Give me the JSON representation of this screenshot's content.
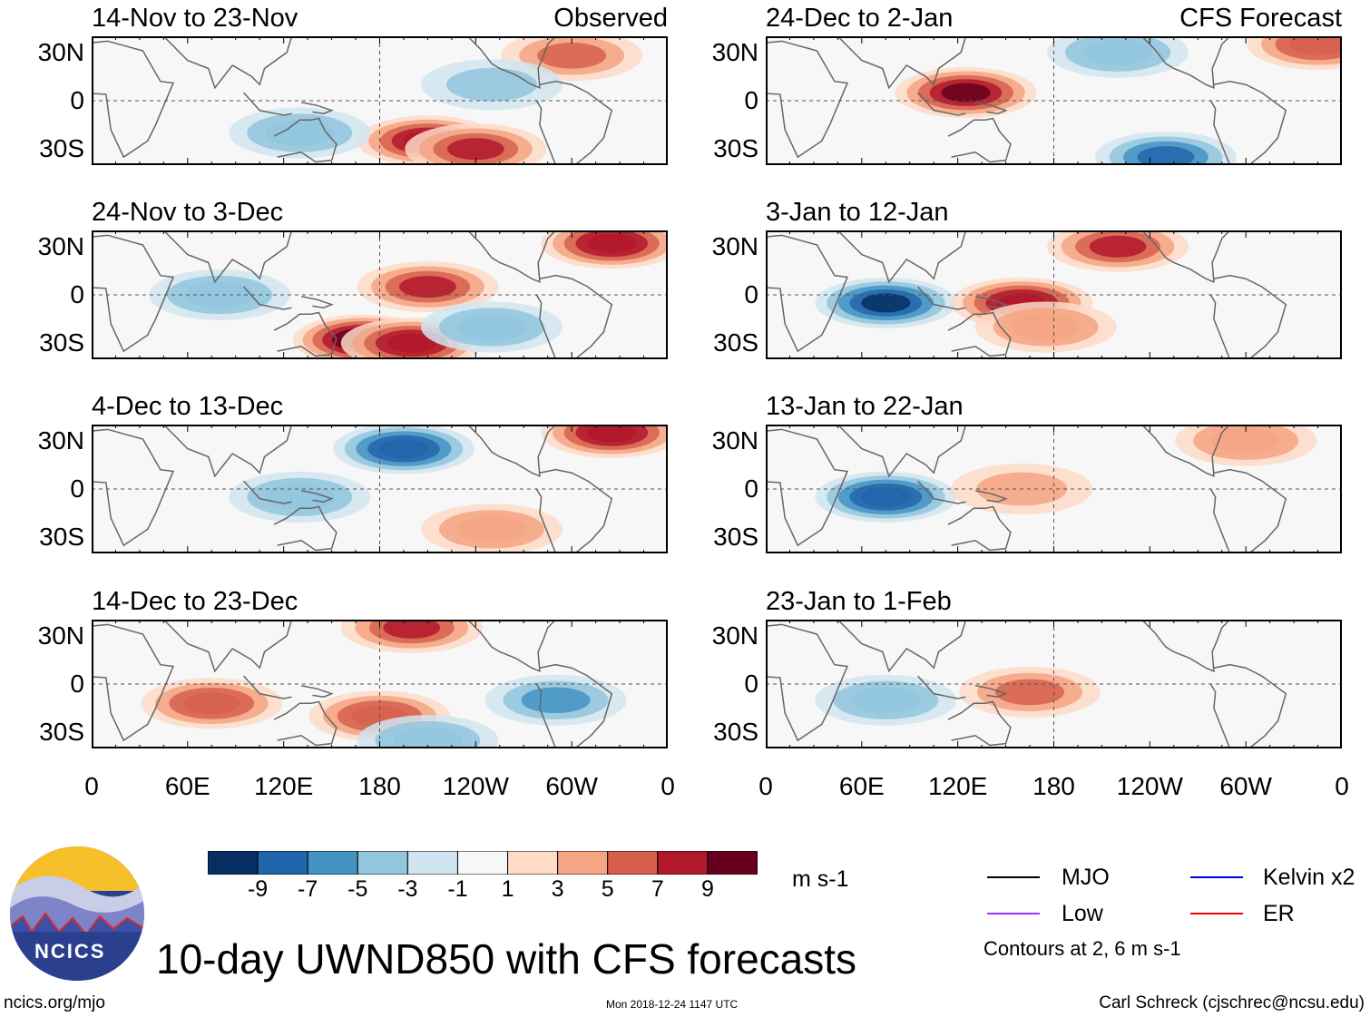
{
  "header": {
    "observed_label": "Observed",
    "forecast_label": "CFS Forecast"
  },
  "axes": {
    "y_ticks": [
      "30N",
      "0",
      "30S"
    ],
    "x_ticks": [
      "0",
      "60E",
      "120E",
      "180",
      "120W",
      "60W",
      "0"
    ]
  },
  "chart_data": [
    {
      "type": "heatmap",
      "title": "14-Nov to 23-Nov",
      "group": "Observed",
      "variable": "UWND850 anomaly",
      "units": "m s-1",
      "xlim": [
        0,
        360
      ],
      "ylim": [
        -40,
        40
      ],
      "centers": [
        {
          "lon": 210,
          "lat": -25,
          "value": 8
        },
        {
          "lon": 240,
          "lat": -30,
          "value": 7
        },
        {
          "lon": 300,
          "lat": 28,
          "value": 5
        },
        {
          "lon": 250,
          "lat": 10,
          "value": -3
        },
        {
          "lon": 130,
          "lat": -20,
          "value": -4
        }
      ]
    },
    {
      "type": "heatmap",
      "title": "24-Nov to 3-Dec",
      "group": "Observed",
      "variable": "UWND850 anomaly",
      "units": "m s-1",
      "xlim": [
        0,
        360
      ],
      "ylim": [
        -40,
        40
      ],
      "centers": [
        {
          "lon": 170,
          "lat": -28,
          "value": 10
        },
        {
          "lon": 200,
          "lat": -30,
          "value": 8
        },
        {
          "lon": 210,
          "lat": 5,
          "value": 7
        },
        {
          "lon": 325,
          "lat": 32,
          "value": 8
        },
        {
          "lon": 80,
          "lat": 0,
          "value": -4
        },
        {
          "lon": 250,
          "lat": -20,
          "value": -4
        }
      ]
    },
    {
      "type": "heatmap",
      "title": "4-Dec to 13-Dec",
      "group": "Observed",
      "variable": "UWND850 anomaly",
      "units": "m s-1",
      "xlim": [
        0,
        360
      ],
      "ylim": [
        -40,
        40
      ],
      "centers": [
        {
          "lon": 195,
          "lat": 25,
          "value": -8
        },
        {
          "lon": 130,
          "lat": -5,
          "value": -4
        },
        {
          "lon": 325,
          "lat": 35,
          "value": 8
        },
        {
          "lon": 250,
          "lat": -25,
          "value": 4
        }
      ]
    },
    {
      "type": "heatmap",
      "title": "14-Dec to 23-Dec",
      "group": "Observed",
      "variable": "UWND850 anomaly",
      "units": "m s-1",
      "xlim": [
        0,
        360
      ],
      "ylim": [
        -40,
        40
      ],
      "centers": [
        {
          "lon": 200,
          "lat": 35,
          "value": 7
        },
        {
          "lon": 75,
          "lat": -12,
          "value": 6
        },
        {
          "lon": 180,
          "lat": -20,
          "value": 6
        },
        {
          "lon": 290,
          "lat": -10,
          "value": -5
        },
        {
          "lon": 210,
          "lat": -35,
          "value": -4
        }
      ]
    },
    {
      "type": "heatmap",
      "title": "24-Dec to 2-Jan",
      "group": "CFS Forecast",
      "variable": "UWND850 anomaly",
      "units": "m s-1",
      "xlim": [
        0,
        360
      ],
      "ylim": [
        -40,
        40
      ],
      "centers": [
        {
          "lon": 125,
          "lat": 5,
          "value": 9
        },
        {
          "lon": 250,
          "lat": -35,
          "value": -7
        },
        {
          "lon": 220,
          "lat": 30,
          "value": -4
        },
        {
          "lon": 345,
          "lat": 35,
          "value": 6
        }
      ]
    },
    {
      "type": "heatmap",
      "title": "3-Jan to 12-Jan",
      "group": "CFS Forecast",
      "variable": "UWND850 anomaly",
      "units": "m s-1",
      "xlim": [
        0,
        360
      ],
      "ylim": [
        -40,
        40
      ],
      "centers": [
        {
          "lon": 75,
          "lat": -5,
          "value": -9
        },
        {
          "lon": 160,
          "lat": -5,
          "value": 8
        },
        {
          "lon": 220,
          "lat": 30,
          "value": 7
        },
        {
          "lon": 175,
          "lat": -20,
          "value": 4
        }
      ]
    },
    {
      "type": "heatmap",
      "title": "13-Jan to 22-Jan",
      "group": "CFS Forecast",
      "variable": "UWND850 anomaly",
      "units": "m s-1",
      "xlim": [
        0,
        360
      ],
      "ylim": [
        -40,
        40
      ],
      "centers": [
        {
          "lon": 75,
          "lat": -5,
          "value": -8
        },
        {
          "lon": 300,
          "lat": 30,
          "value": 4
        },
        {
          "lon": 160,
          "lat": 0,
          "value": 3
        }
      ]
    },
    {
      "type": "heatmap",
      "title": "23-Jan to 1-Feb",
      "group": "CFS Forecast",
      "variable": "UWND850 anomaly",
      "units": "m s-1",
      "xlim": [
        0,
        360
      ],
      "ylim": [
        -40,
        40
      ],
      "centers": [
        {
          "lon": 165,
          "lat": -5,
          "value": 5
        },
        {
          "lon": 75,
          "lat": -10,
          "value": -4
        }
      ]
    }
  ],
  "colorbar": {
    "labels": [
      "-9",
      "-7",
      "-5",
      "-3",
      "-1",
      "1",
      "3",
      "5",
      "7",
      "9"
    ],
    "units": "m s-1",
    "colors": [
      "#053061",
      "#2166ac",
      "#4393c3",
      "#92c5de",
      "#d1e5f0",
      "#f7f7f7",
      "#fddbc7",
      "#f4a582",
      "#d6604d",
      "#b2182b",
      "#67001f"
    ]
  },
  "legend": {
    "items": [
      {
        "label": "MJO",
        "color": "#000000"
      },
      {
        "label": "Kelvin x2",
        "color": "#0000dd"
      },
      {
        "label": "Low",
        "color": "#9b30ff"
      },
      {
        "label": "ER",
        "color": "#ee0000"
      }
    ],
    "note": "Contours at 2, 6 m s-1"
  },
  "title": "10-day UWND850 with CFS forecasts",
  "footer": {
    "site": "ncics.org/mjo",
    "timestamp": "Mon 2018-12-24 1147 UTC",
    "author": "Carl Schreck (cjschrec@ncsu.edu)"
  },
  "logo": {
    "text": "NCICS"
  }
}
